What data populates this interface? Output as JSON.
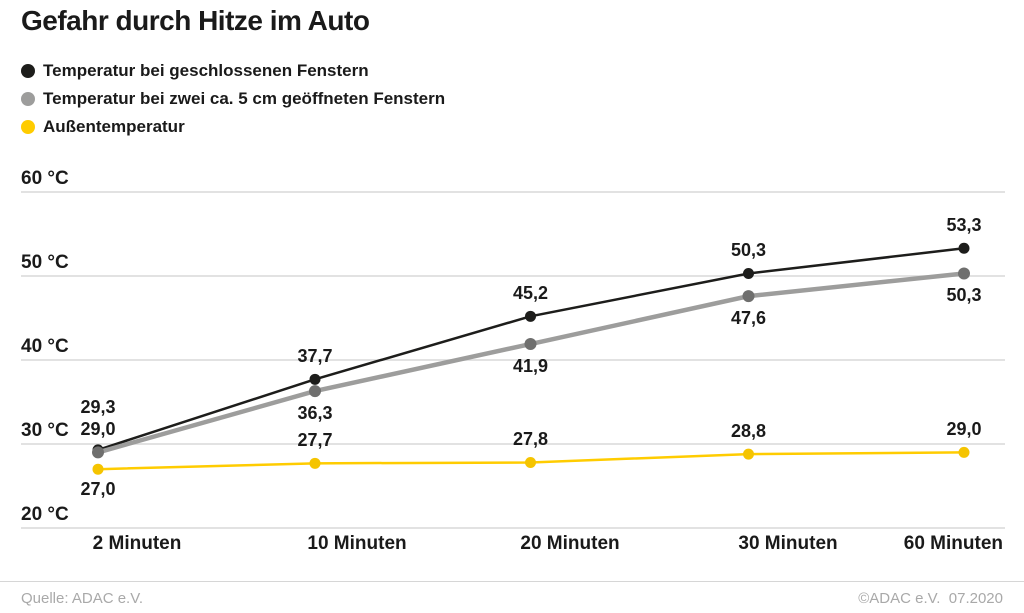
{
  "title": "Gefahr durch Hitze im Auto",
  "legend": {
    "items": [
      {
        "label": "Temperatur bei geschlossenen Fenstern",
        "color": "#1d1d1b"
      },
      {
        "label": "Temperatur bei zwei ca. 5 cm geöffneten Fenstern",
        "color": "#9d9d9c"
      },
      {
        "label": "Außentemperatur",
        "color": "#ffcc00"
      }
    ]
  },
  "chart_data": {
    "type": "line",
    "title": "Gefahr durch Hitze im Auto",
    "categories": [
      "2 Minuten",
      "10 Minuten",
      "20 Minuten",
      "30 Minuten",
      "60 Minuten"
    ],
    "ylabel": "°C",
    "ylim": [
      20,
      60
    ],
    "grid": true,
    "legend_position": "top-left",
    "yticks": [
      {
        "value": 60,
        "label": "60 °C"
      },
      {
        "value": 50,
        "label": "50 °C"
      },
      {
        "value": 40,
        "label": "40 °C"
      },
      {
        "value": 30,
        "label": "30 °C"
      },
      {
        "value": 20,
        "label": "20 °C"
      }
    ],
    "series": [
      {
        "name": "Temperatur bei geschlossenen Fenstern",
        "color": "#1d1d1b",
        "dot_color": "#1d1d1b",
        "line_width": 2.5,
        "dot_radius": 5.5,
        "values": [
          29.3,
          37.7,
          45.2,
          50.3,
          53.3
        ],
        "labels": [
          "29,3",
          "37,7",
          "45,2",
          "50,3",
          "53,3"
        ],
        "label_dy": [
          -43,
          -23,
          -23,
          -23,
          -23
        ]
      },
      {
        "name": "Temperatur bei zwei ca. 5 cm geöffneten Fenstern",
        "color": "#9d9d9c",
        "dot_color": "#6f6f6e",
        "line_width": 4.5,
        "dot_radius": 6,
        "values": [
          29.0,
          36.3,
          41.9,
          47.6,
          50.3
        ],
        "labels": [
          "29,0",
          "36,3",
          "41,9",
          "47,6",
          "50,3"
        ],
        "label_dy": [
          -23,
          22,
          22,
          22,
          22
        ]
      },
      {
        "name": "Außentemperatur",
        "color": "#ffcc00",
        "dot_color": "#f5c400",
        "line_width": 2.5,
        "dot_radius": 5.5,
        "values": [
          27.0,
          27.7,
          27.8,
          28.8,
          29.0
        ],
        "labels": [
          "27,0",
          "27,7",
          "27,8",
          "28,8",
          "29,0"
        ],
        "label_dy": [
          20,
          -23,
          -23,
          -23,
          -23
        ]
      }
    ]
  },
  "footer": {
    "source": "Quelle: ADAC e.V.",
    "copyright": "©ADAC e.V.  07.2020"
  }
}
